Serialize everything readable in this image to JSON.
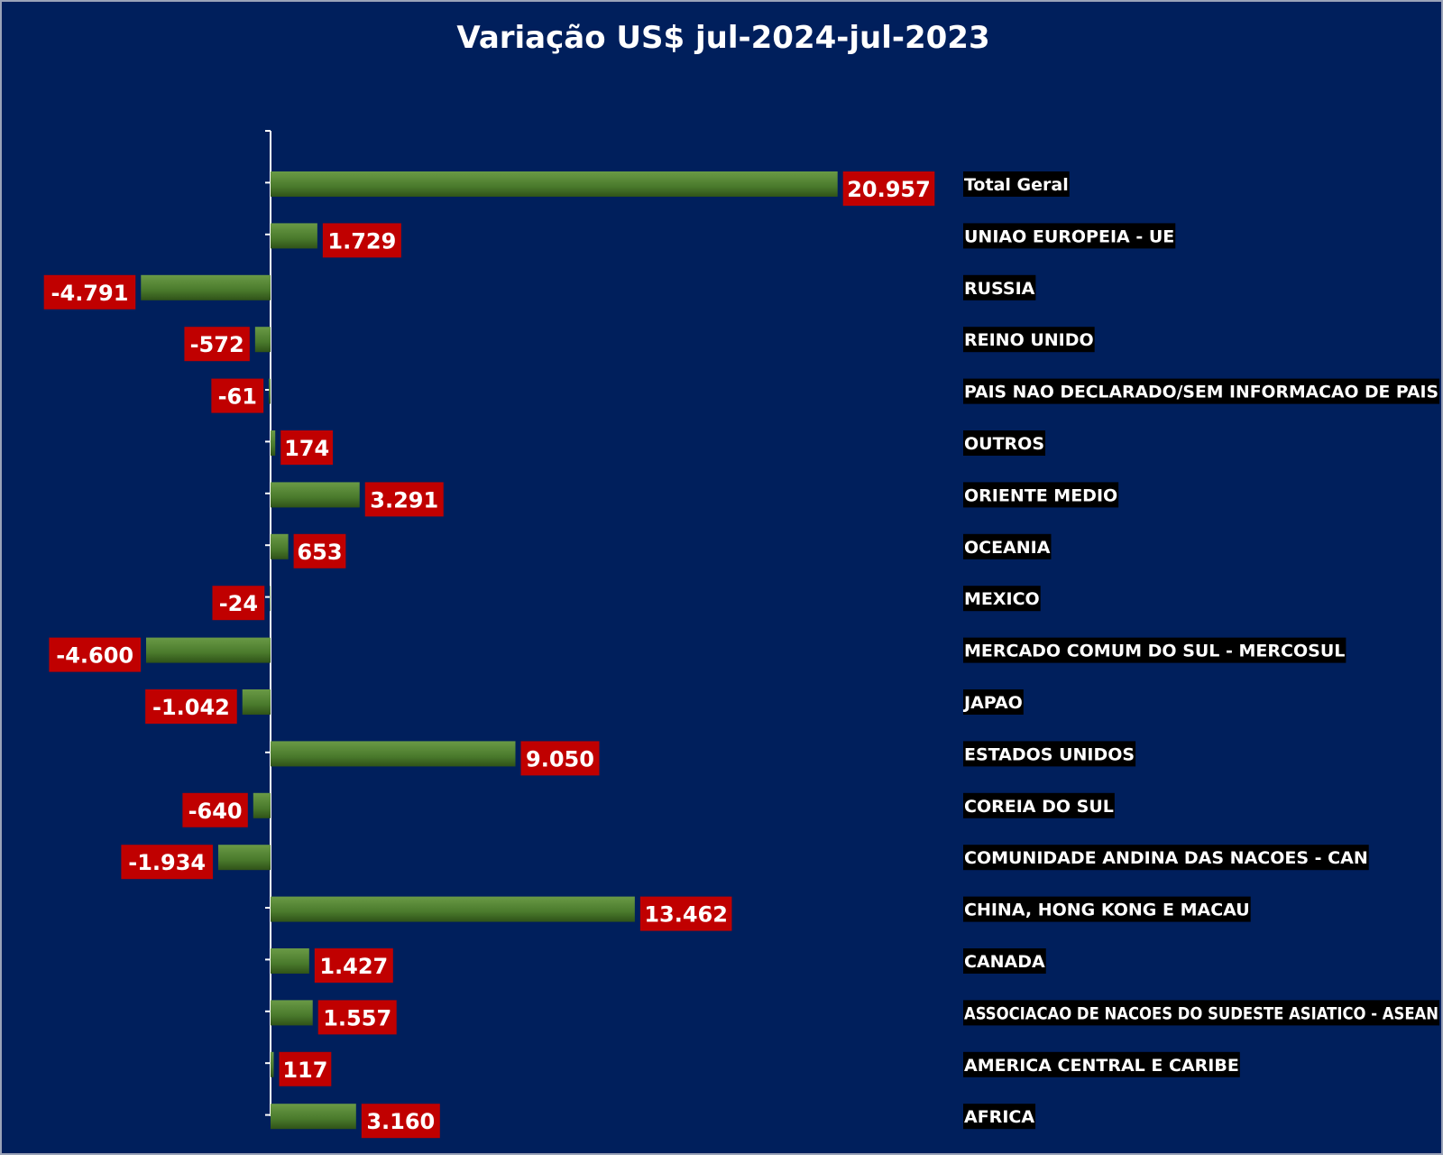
{
  "chart_data": {
    "type": "bar",
    "orientation": "horizontal",
    "title": "Variação US$ jul-2024-jul-2023",
    "categories": [
      "Total Geral",
      "UNIAO EUROPEIA - UE",
      "RUSSIA",
      "REINO UNIDO",
      "PAIS NAO DECLARADO/SEM INFORMACAO DE PAIS",
      "OUTROS",
      "ORIENTE MEDIO",
      "OCEANIA",
      "MEXICO",
      "MERCADO COMUM DO SUL - MERCOSUL",
      "JAPAO",
      "ESTADOS UNIDOS",
      "COREIA DO SUL",
      "COMUNIDADE ANDINA DAS NACOES - CAN",
      "CHINA, HONG KONG E MACAU",
      "CANADA",
      "ASSOCIACAO DE NACOES DO SUDESTE ASIATICO - ASEAN",
      "AMERICA CENTRAL E CARIBE",
      "AFRICA"
    ],
    "values": [
      20957,
      1729,
      -4791,
      -572,
      -61,
      174,
      3291,
      653,
      -24,
      -4600,
      -1042,
      9050,
      -640,
      -1934,
      13462,
      1427,
      1557,
      117,
      3160
    ],
    "value_labels": [
      "20.957",
      "1.729",
      "-4.791",
      "-572",
      "-61",
      "174",
      "3.291",
      "653",
      "-24",
      "-4.600",
      "-1.042",
      "9.050",
      "-640",
      "-1.934",
      "13.462",
      "1.427",
      "1.557",
      "117",
      "3.160"
    ],
    "xlabel": "",
    "ylabel": "",
    "grid": false,
    "legend": "none"
  },
  "colors": {
    "background": "#001f5c",
    "bar": "#4a7a2c",
    "bar_highlight": "#6a9a46",
    "value_label_bg": "#c00000",
    "category_label_bg": "#000000",
    "text": "#ffffff",
    "axis": "#ffffff"
  }
}
